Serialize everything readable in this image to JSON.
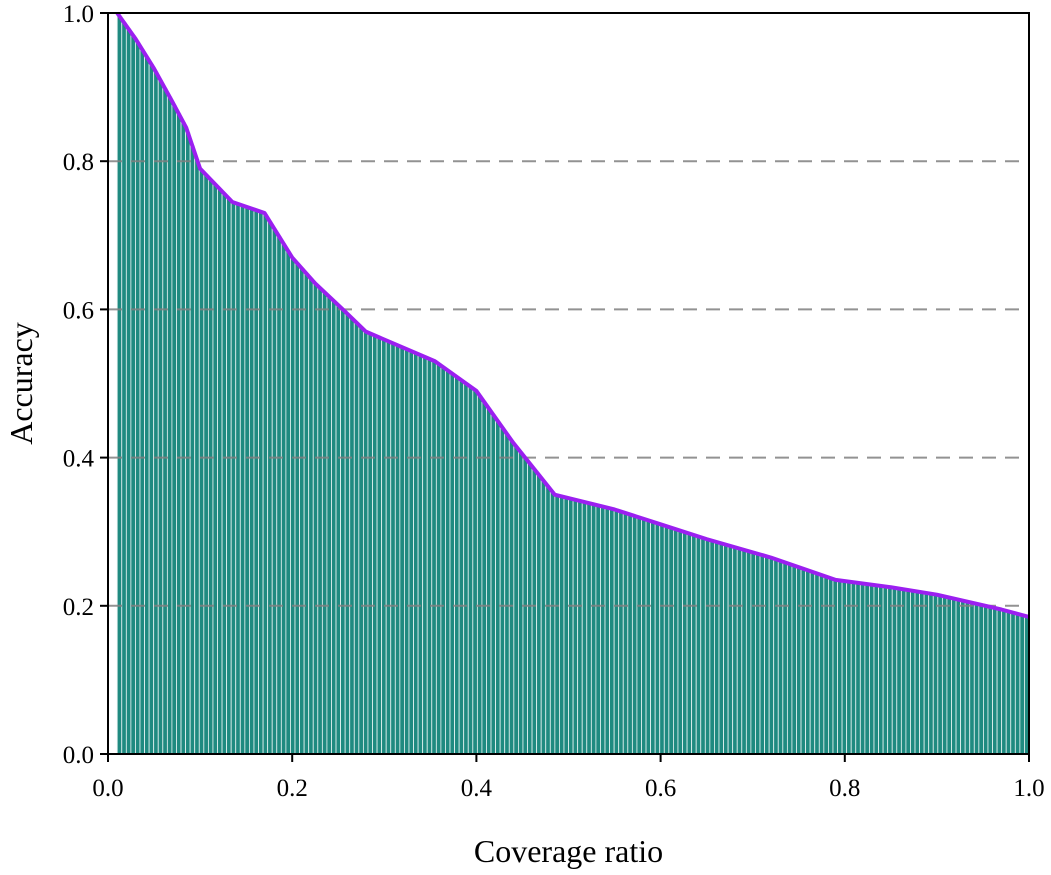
{
  "chart_data": {
    "type": "bar",
    "title": "",
    "xlabel": "Coverage ratio",
    "ylabel": "Accuracy",
    "xlim": [
      0.0,
      1.0
    ],
    "ylim": [
      0.0,
      1.0
    ],
    "x_ticks": [
      "0.0",
      "0.2",
      "0.4",
      "0.6",
      "0.8",
      "1.0"
    ],
    "y_ticks": [
      "0.0",
      "0.2",
      "0.4",
      "0.6",
      "0.8",
      "1.0"
    ],
    "grid": "horizontal dashed at 0.2, 0.4, 0.6, 0.8",
    "bar_color": "#1f8a80",
    "bar_edge_color": "#e8f4f3",
    "outline_color": "#9b1ff0",
    "grid_color": "#808080",
    "bar_count": 200,
    "x": [
      0.01,
      0.03,
      0.05,
      0.07,
      0.085,
      0.1,
      0.135,
      0.17,
      0.2,
      0.225,
      0.255,
      0.28,
      0.355,
      0.4,
      0.44,
      0.485,
      0.55,
      0.6,
      0.65,
      0.72,
      0.79,
      0.85,
      0.9,
      0.97,
      1.0
    ],
    "y": [
      1.0,
      0.965,
      0.925,
      0.88,
      0.845,
      0.79,
      0.745,
      0.73,
      0.67,
      0.635,
      0.6,
      0.57,
      0.53,
      0.49,
      0.42,
      0.35,
      0.33,
      0.31,
      0.29,
      0.265,
      0.235,
      0.225,
      0.215,
      0.195,
      0.185
    ]
  }
}
